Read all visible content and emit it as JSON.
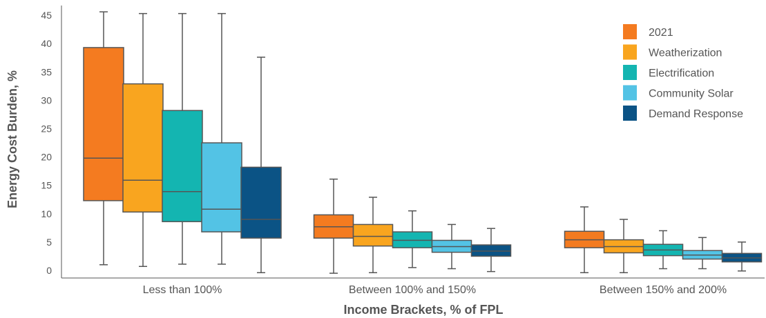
{
  "chart_data": {
    "type": "box",
    "xlabel": "Income Brackets, % of FPL",
    "ylabel": "Energy Cost Burden, %",
    "ylim": [
      -1,
      46
    ],
    "yticks": [
      0,
      5,
      10,
      15,
      20,
      25,
      30,
      35,
      40,
      45
    ],
    "categories": [
      "Less than 100%",
      "Between 100% and 150%",
      "Between 150% and 200%"
    ],
    "legend_position": "top-right",
    "grid": false,
    "series": [
      {
        "name": "2021",
        "color": "#F47B20",
        "boxes": [
          {
            "min": 1.0,
            "q1": 12.3,
            "median": 19.8,
            "q3": 39.3,
            "max": 45.6
          },
          {
            "min": -0.5,
            "q1": 5.7,
            "median": 7.7,
            "q3": 9.8,
            "max": 16.1
          },
          {
            "min": -0.4,
            "q1": 4.0,
            "median": 5.4,
            "q3": 6.9,
            "max": 11.2
          }
        ]
      },
      {
        "name": "Weatherization",
        "color": "#F9A51F",
        "boxes": [
          {
            "min": 0.7,
            "q1": 10.3,
            "median": 15.9,
            "q3": 32.9,
            "max": 45.3
          },
          {
            "min": -0.4,
            "q1": 4.3,
            "median": 6.0,
            "q3": 8.1,
            "max": 12.9
          },
          {
            "min": -0.4,
            "q1": 3.1,
            "median": 4.2,
            "q3": 5.4,
            "max": 9.0
          }
        ]
      },
      {
        "name": "Electrification",
        "color": "#14B5B1",
        "boxes": [
          {
            "min": 1.1,
            "q1": 8.6,
            "median": 13.9,
            "q3": 28.2,
            "max": 45.3
          },
          {
            "min": 0.5,
            "q1": 4.0,
            "median": 5.3,
            "q3": 6.8,
            "max": 10.5
          },
          {
            "min": 0.3,
            "q1": 2.6,
            "median": 3.6,
            "q3": 4.6,
            "max": 7.0
          }
        ]
      },
      {
        "name": "Community Solar",
        "color": "#53C3E5",
        "boxes": [
          {
            "min": 1.1,
            "q1": 6.8,
            "median": 10.8,
            "q3": 22.5,
            "max": 45.3
          },
          {
            "min": 0.3,
            "q1": 3.2,
            "median": 4.2,
            "q3": 5.3,
            "max": 8.1
          },
          {
            "min": 0.3,
            "q1": 2.0,
            "median": 2.7,
            "q3": 3.5,
            "max": 5.8
          }
        ]
      },
      {
        "name": "Demand Response",
        "color": "#0B5385",
        "boxes": [
          {
            "min": -0.4,
            "q1": 5.7,
            "median": 9.0,
            "q3": 18.2,
            "max": 37.6
          },
          {
            "min": -0.2,
            "q1": 2.5,
            "median": 3.4,
            "q3": 4.5,
            "max": 7.4
          },
          {
            "min": -0.1,
            "q1": 1.5,
            "median": 2.2,
            "q3": 3.0,
            "max": 5.0
          }
        ]
      }
    ],
    "style": {
      "stroke_color": "#555555",
      "axis_color": "#555555"
    }
  }
}
